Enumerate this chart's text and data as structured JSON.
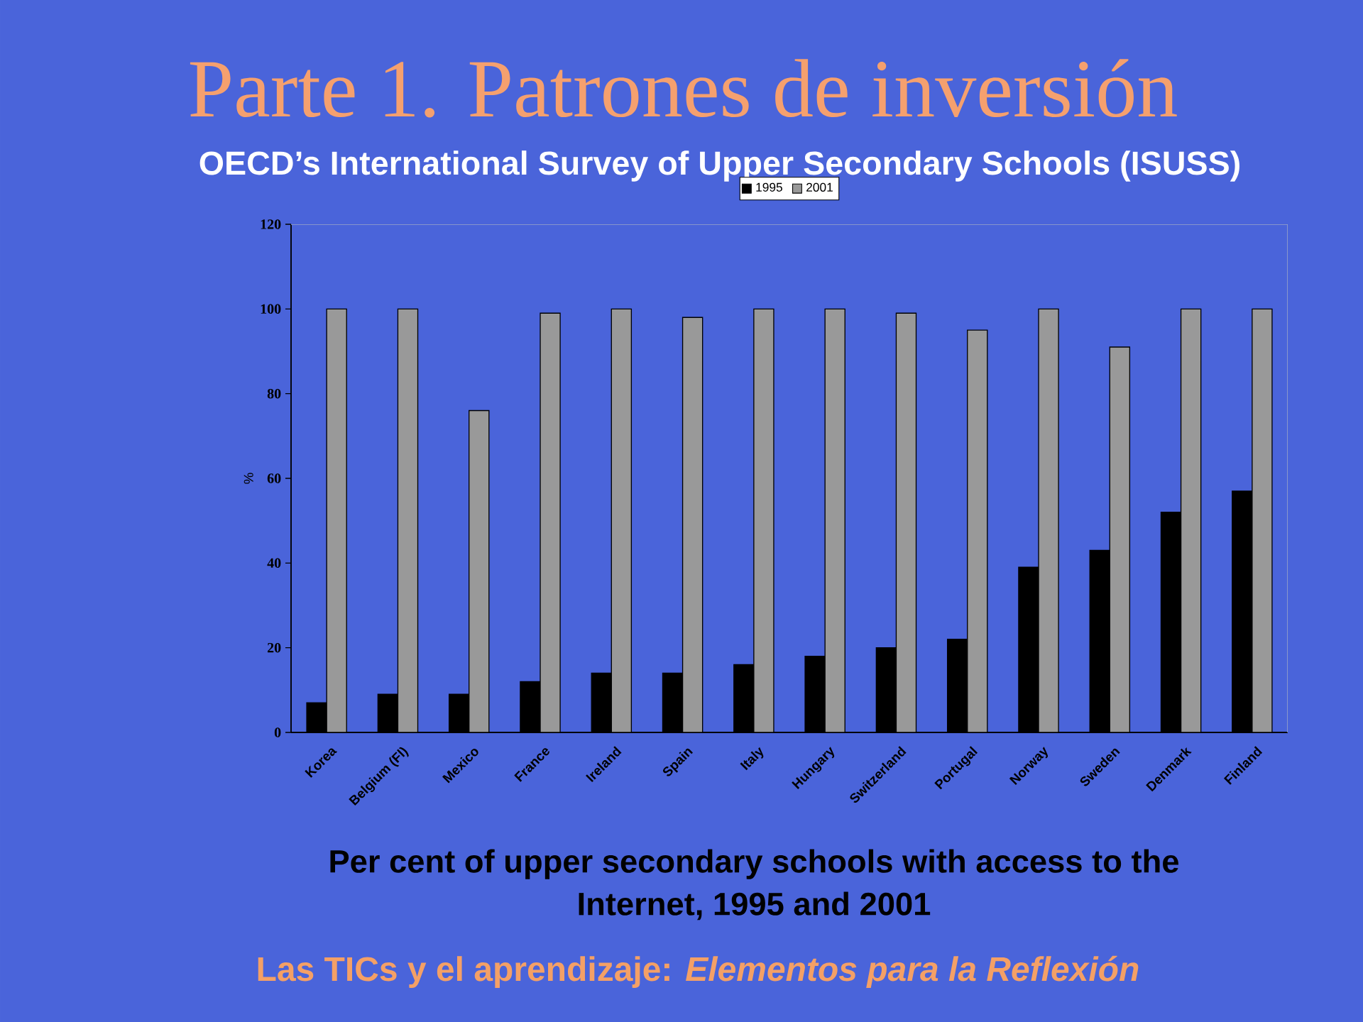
{
  "chart_data": {
    "type": "bar",
    "title": "Parte 1. Patrones de inversión",
    "subtitle": "OECD’s International Survey of Upper Secondary Schools (ISUSS)",
    "ylabel": "%",
    "annotations": [
      "Per cent of upper secondary schools with access to the Internet, 1995 and 2001",
      "Las TICs y el aprendizaje:  *Elementos para la Reflexión*"
    ],
    "categories": [
      "Korea",
      "Belgium (Fl)",
      "Mexico",
      "France",
      "Ireland",
      "Spain",
      "Italy",
      "Hungary",
      "Switzerland",
      "Portugal",
      "Norway",
      "Sweden",
      "Denmark",
      "Finland"
    ],
    "series": [
      {
        "name": "1995",
        "color": "#000000",
        "values": [
          7,
          9,
          9,
          12,
          14,
          14,
          16,
          18,
          20,
          22,
          39,
          43,
          52,
          57
        ]
      },
      {
        "name": "2001",
        "color": "#999999",
        "values": [
          100,
          100,
          76,
          99,
          100,
          98,
          100,
          100,
          99,
          95,
          100,
          91,
          100,
          100
        ]
      }
    ],
    "ylim": [
      0,
      120
    ],
    "yticks": [
      0,
      20,
      40,
      60,
      80,
      100,
      120
    ],
    "legend": "top"
  }
}
